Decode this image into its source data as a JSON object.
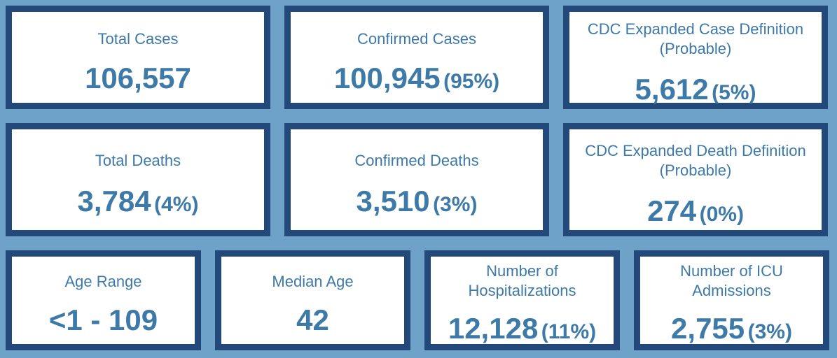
{
  "colors": {
    "background": "#6fa2c9",
    "card_border": "#23497b",
    "card_fill": "#ffffff",
    "text": "#3d7aa8"
  },
  "cards": [
    {
      "label_lines": [
        "Total Cases"
      ],
      "value": "106,557",
      "pct": ""
    },
    {
      "label_lines": [
        "Confirmed Cases"
      ],
      "value": "100,945",
      "pct": "(95%)"
    },
    {
      "label_lines": [
        "CDC Expanded Case Definition",
        "(Probable)"
      ],
      "value": "5,612",
      "pct": "(5%)"
    },
    {
      "label_lines": [
        "Total Deaths"
      ],
      "value": "3,784",
      "pct": "(4%)"
    },
    {
      "label_lines": [
        "Confirmed Deaths"
      ],
      "value": "3,510",
      "pct": "(3%)"
    },
    {
      "label_lines": [
        "CDC Expanded Death Definition",
        "(Probable)"
      ],
      "value": "274",
      "pct": "(0%)"
    },
    {
      "label_lines": [
        "Age Range"
      ],
      "value": "<1 - 109",
      "pct": ""
    },
    {
      "label_lines": [
        "Median Age"
      ],
      "value": "42",
      "pct": ""
    },
    {
      "label_lines": [
        "Number of",
        "Hospitalizations"
      ],
      "value": "12,128",
      "pct": "(11%)"
    },
    {
      "label_lines": [
        "Number of ICU",
        "Admissions"
      ],
      "value": "2,755",
      "pct": "(3%)"
    }
  ]
}
